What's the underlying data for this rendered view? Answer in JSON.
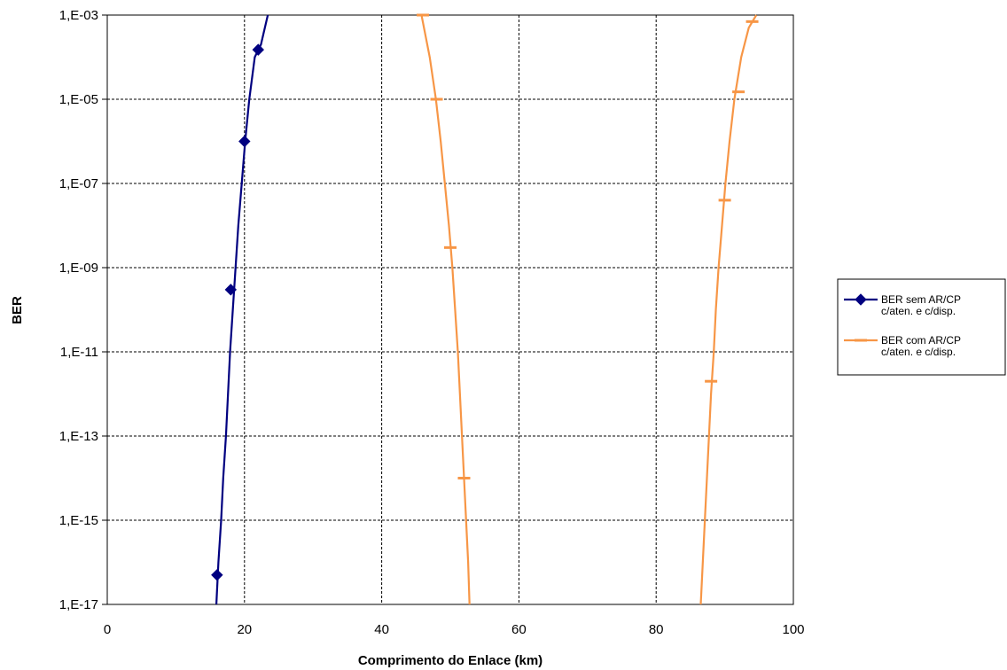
{
  "chart_data": {
    "type": "line",
    "title": "",
    "xlabel": "Comprimento do Enlace (km)",
    "ylabel": "BER",
    "xlim": [
      0,
      100
    ],
    "ylim": [
      1e-17,
      0.001
    ],
    "y_scale": "log",
    "x_ticks": [
      {
        "value": 0,
        "label": "0"
      },
      {
        "value": 20,
        "label": "20"
      },
      {
        "value": 40,
        "label": "40"
      },
      {
        "value": 60,
        "label": "60"
      },
      {
        "value": 80,
        "label": "80"
      },
      {
        "value": 100,
        "label": "100"
      }
    ],
    "y_ticks": [
      {
        "value": 0.001,
        "label": "1,E-03"
      },
      {
        "value": 1e-05,
        "label": "1,E-05"
      },
      {
        "value": 1e-07,
        "label": "1,E-07"
      },
      {
        "value": 1e-09,
        "label": "1,E-09"
      },
      {
        "value": 1e-11,
        "label": "1,E-11"
      },
      {
        "value": 1e-13,
        "label": "1,E-13"
      },
      {
        "value": 1e-15,
        "label": "1,E-15"
      },
      {
        "value": 1e-17,
        "label": "1,E-17"
      }
    ],
    "grid": true,
    "legend_position": "right",
    "series": [
      {
        "name": "BER sem AR/CP c/aten. e c/disp.",
        "legend_lines": [
          "BER sem AR/CP",
          "c/aten. e c/disp."
        ],
        "color": "#000080",
        "marker": "diamond",
        "curve": [
          {
            "x": 15.9,
            "y": 1e-17
          },
          {
            "x": 16.2,
            "y": 1e-16
          },
          {
            "x": 16.6,
            "y": 1e-15
          },
          {
            "x": 16.9,
            "y": 1e-14
          },
          {
            "x": 17.3,
            "y": 1e-13
          },
          {
            "x": 17.6,
            "y": 1e-12
          },
          {
            "x": 17.9,
            "y": 1e-11
          },
          {
            "x": 18.3,
            "y": 1e-10
          },
          {
            "x": 18.7,
            "y": 1e-09
          },
          {
            "x": 19.1,
            "y": 1e-08
          },
          {
            "x": 19.6,
            "y": 1e-07
          },
          {
            "x": 20.1,
            "y": 1e-06
          },
          {
            "x": 20.7,
            "y": 1e-05
          },
          {
            "x": 21.5,
            "y": 0.0001
          },
          {
            "x": 22.4,
            "y": 0.0002
          },
          {
            "x": 23.4,
            "y": 0.001
          }
        ],
        "markers": [
          {
            "x": 16.0,
            "y": 5e-17
          },
          {
            "x": 18.0,
            "y": 3e-10
          },
          {
            "x": 20.0,
            "y": 1e-06
          },
          {
            "x": 22.0,
            "y": 0.00015
          }
        ]
      },
      {
        "name": "BER com AR/CP c/aten. e c/disp.",
        "legend_lines": [
          "BER com AR/CP",
          "c/aten. e c/disp."
        ],
        "color": "#F79646",
        "marker": "dash",
        "branches": [
          [
            {
              "x": 52.8,
              "y": 1e-17
            },
            {
              "x": 52.6,
              "y": 1e-16
            },
            {
              "x": 52.3,
              "y": 1e-15
            },
            {
              "x": 52.0,
              "y": 1e-14
            },
            {
              "x": 51.7,
              "y": 1e-13
            },
            {
              "x": 51.4,
              "y": 1e-12
            },
            {
              "x": 51.1,
              "y": 1e-11
            },
            {
              "x": 50.7,
              "y": 1e-10
            },
            {
              "x": 50.3,
              "y": 1e-09
            },
            {
              "x": 49.8,
              "y": 1e-08
            },
            {
              "x": 49.2,
              "y": 1e-07
            },
            {
              "x": 48.6,
              "y": 1e-06
            },
            {
              "x": 47.9,
              "y": 1e-05
            },
            {
              "x": 47.0,
              "y": 0.0001
            },
            {
              "x": 45.8,
              "y": 0.001
            }
          ],
          [
            {
              "x": 86.5,
              "y": 1e-17
            },
            {
              "x": 86.8,
              "y": 1e-16
            },
            {
              "x": 87.1,
              "y": 1e-15
            },
            {
              "x": 87.4,
              "y": 1e-14
            },
            {
              "x": 87.7,
              "y": 1e-13
            },
            {
              "x": 88.0,
              "y": 1e-12
            },
            {
              "x": 88.4,
              "y": 1e-11
            },
            {
              "x": 88.7,
              "y": 1e-10
            },
            {
              "x": 89.1,
              "y": 1e-09
            },
            {
              "x": 89.6,
              "y": 1e-08
            },
            {
              "x": 90.1,
              "y": 1e-07
            },
            {
              "x": 90.7,
              "y": 1e-06
            },
            {
              "x": 91.4,
              "y": 1e-05
            },
            {
              "x": 92.4,
              "y": 0.0001
            },
            {
              "x": 93.5,
              "y": 0.0005
            },
            {
              "x": 94.6,
              "y": 0.001
            }
          ]
        ],
        "markers": [
          {
            "x": 46.0,
            "y": 0.001
          },
          {
            "x": 48.0,
            "y": 1e-05
          },
          {
            "x": 50.0,
            "y": 3e-09
          },
          {
            "x": 52.0,
            "y": 1e-14
          },
          {
            "x": 88.0,
            "y": 2e-12
          },
          {
            "x": 90.0,
            "y": 4e-08
          },
          {
            "x": 92.0,
            "y": 1.5e-05
          },
          {
            "x": 94.0,
            "y": 0.0007
          }
        ]
      }
    ]
  }
}
